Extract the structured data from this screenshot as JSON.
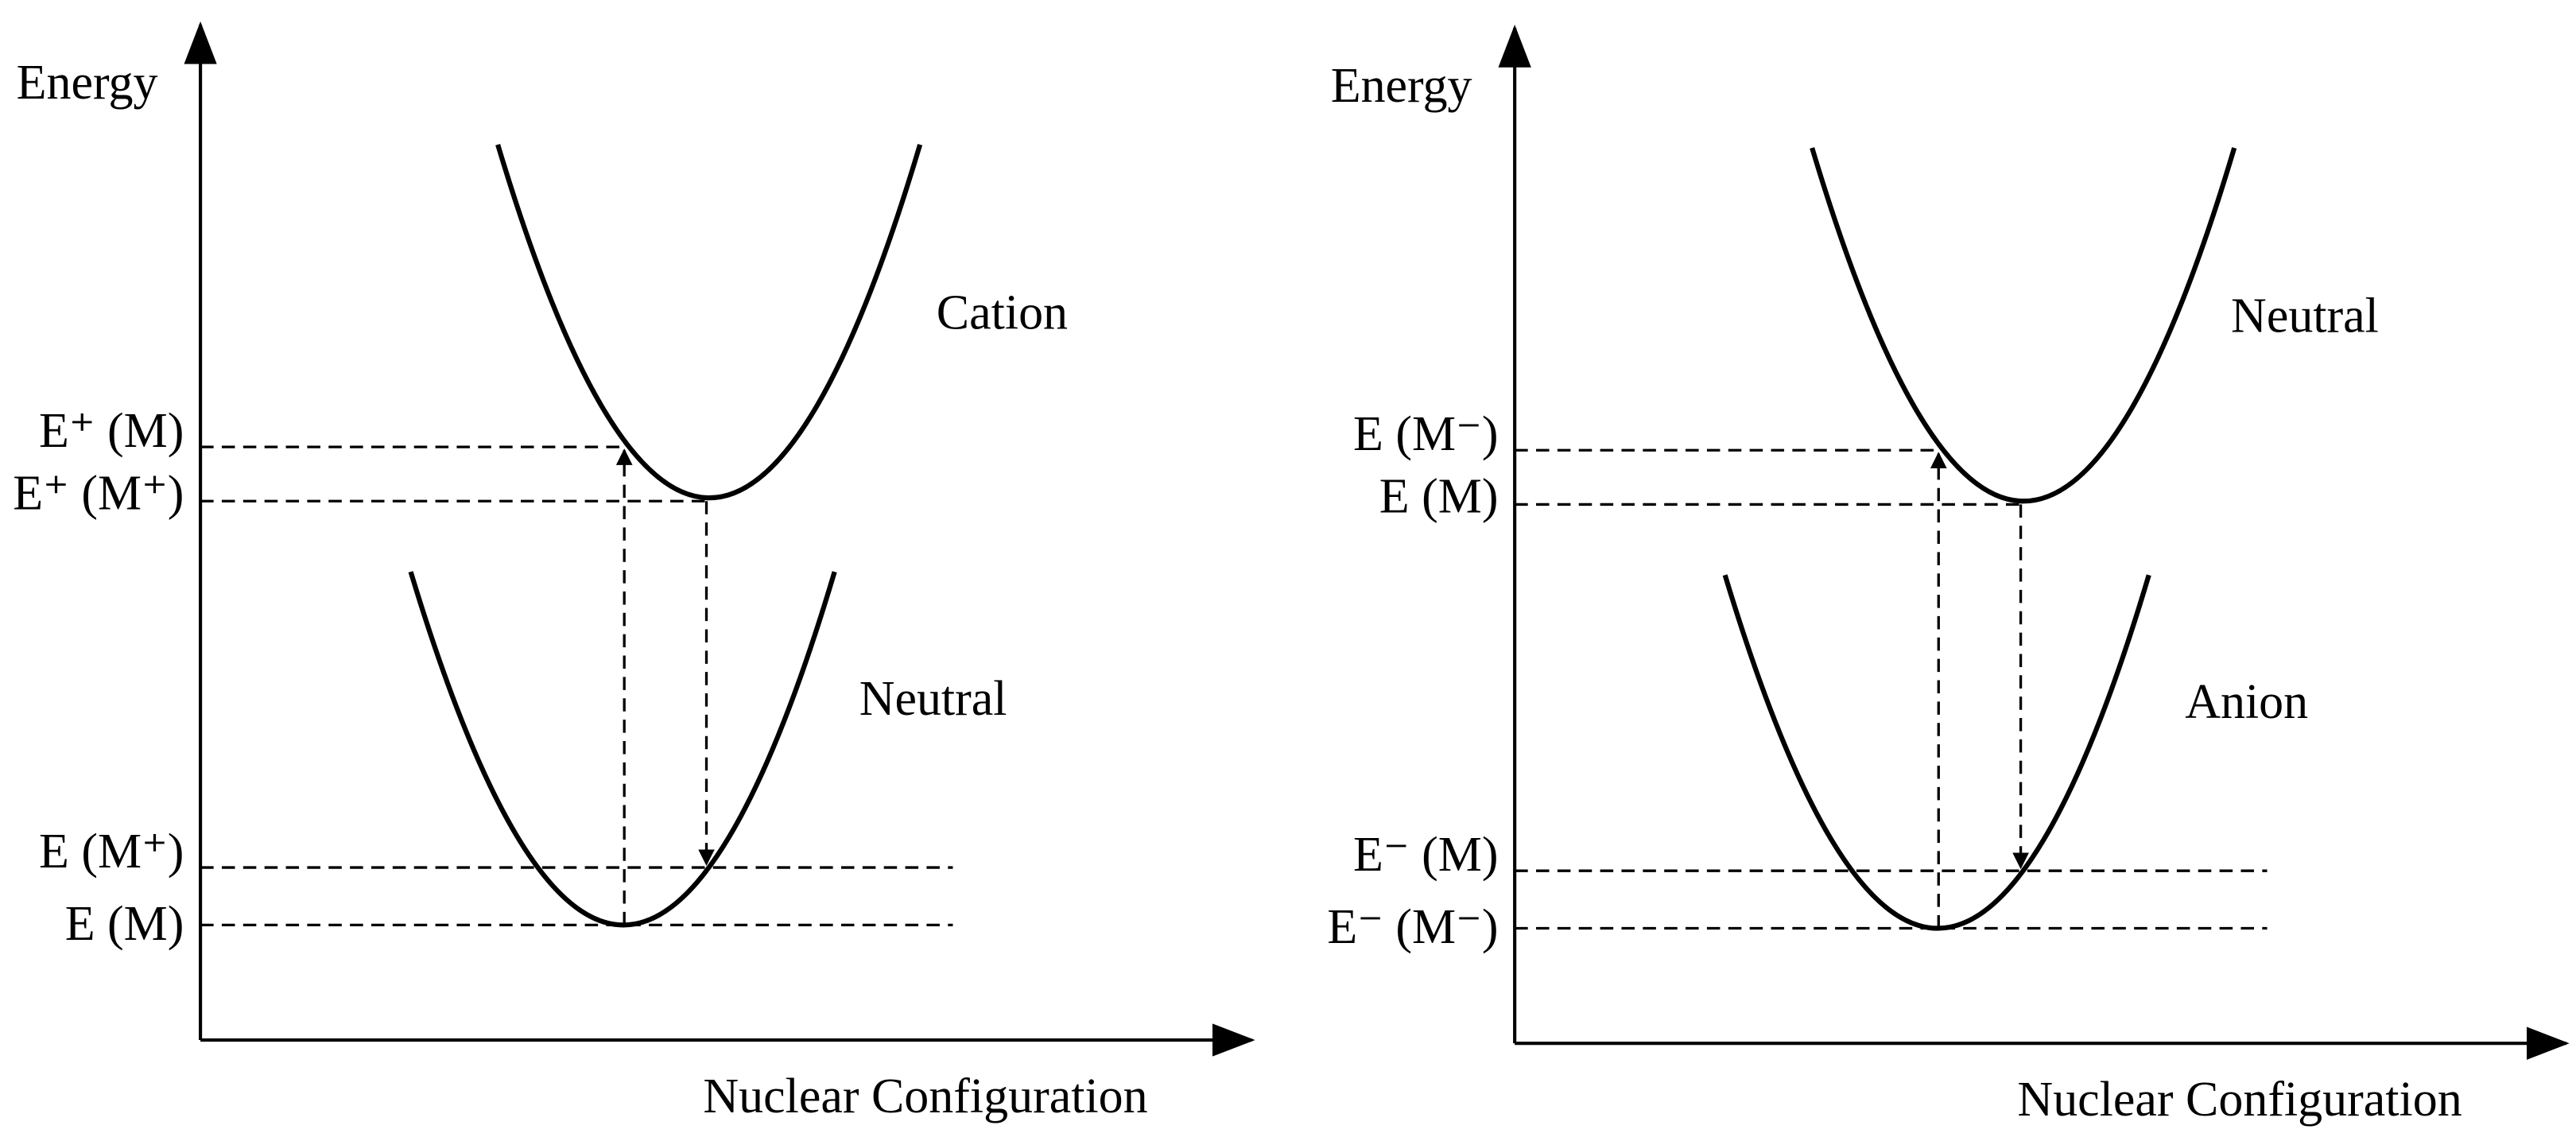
{
  "panels": [
    {
      "y_axis_label": "Energy",
      "x_axis_label": "Nuclear Configuration",
      "upper_curve_label": "Cation",
      "lower_curve_label": "Neutral",
      "levels": [
        "E⁺ (M)",
        "E⁺ (M⁺)",
        "E (M⁺)",
        "E (M)"
      ]
    },
    {
      "y_axis_label": "Energy",
      "x_axis_label": "Nuclear Configuration",
      "upper_curve_label": "Neutral",
      "lower_curve_label": "Anion",
      "levels": [
        "E (M⁻)",
        "E (M)",
        "E⁻ (M)",
        "E⁻ (M⁻)"
      ]
    }
  ]
}
